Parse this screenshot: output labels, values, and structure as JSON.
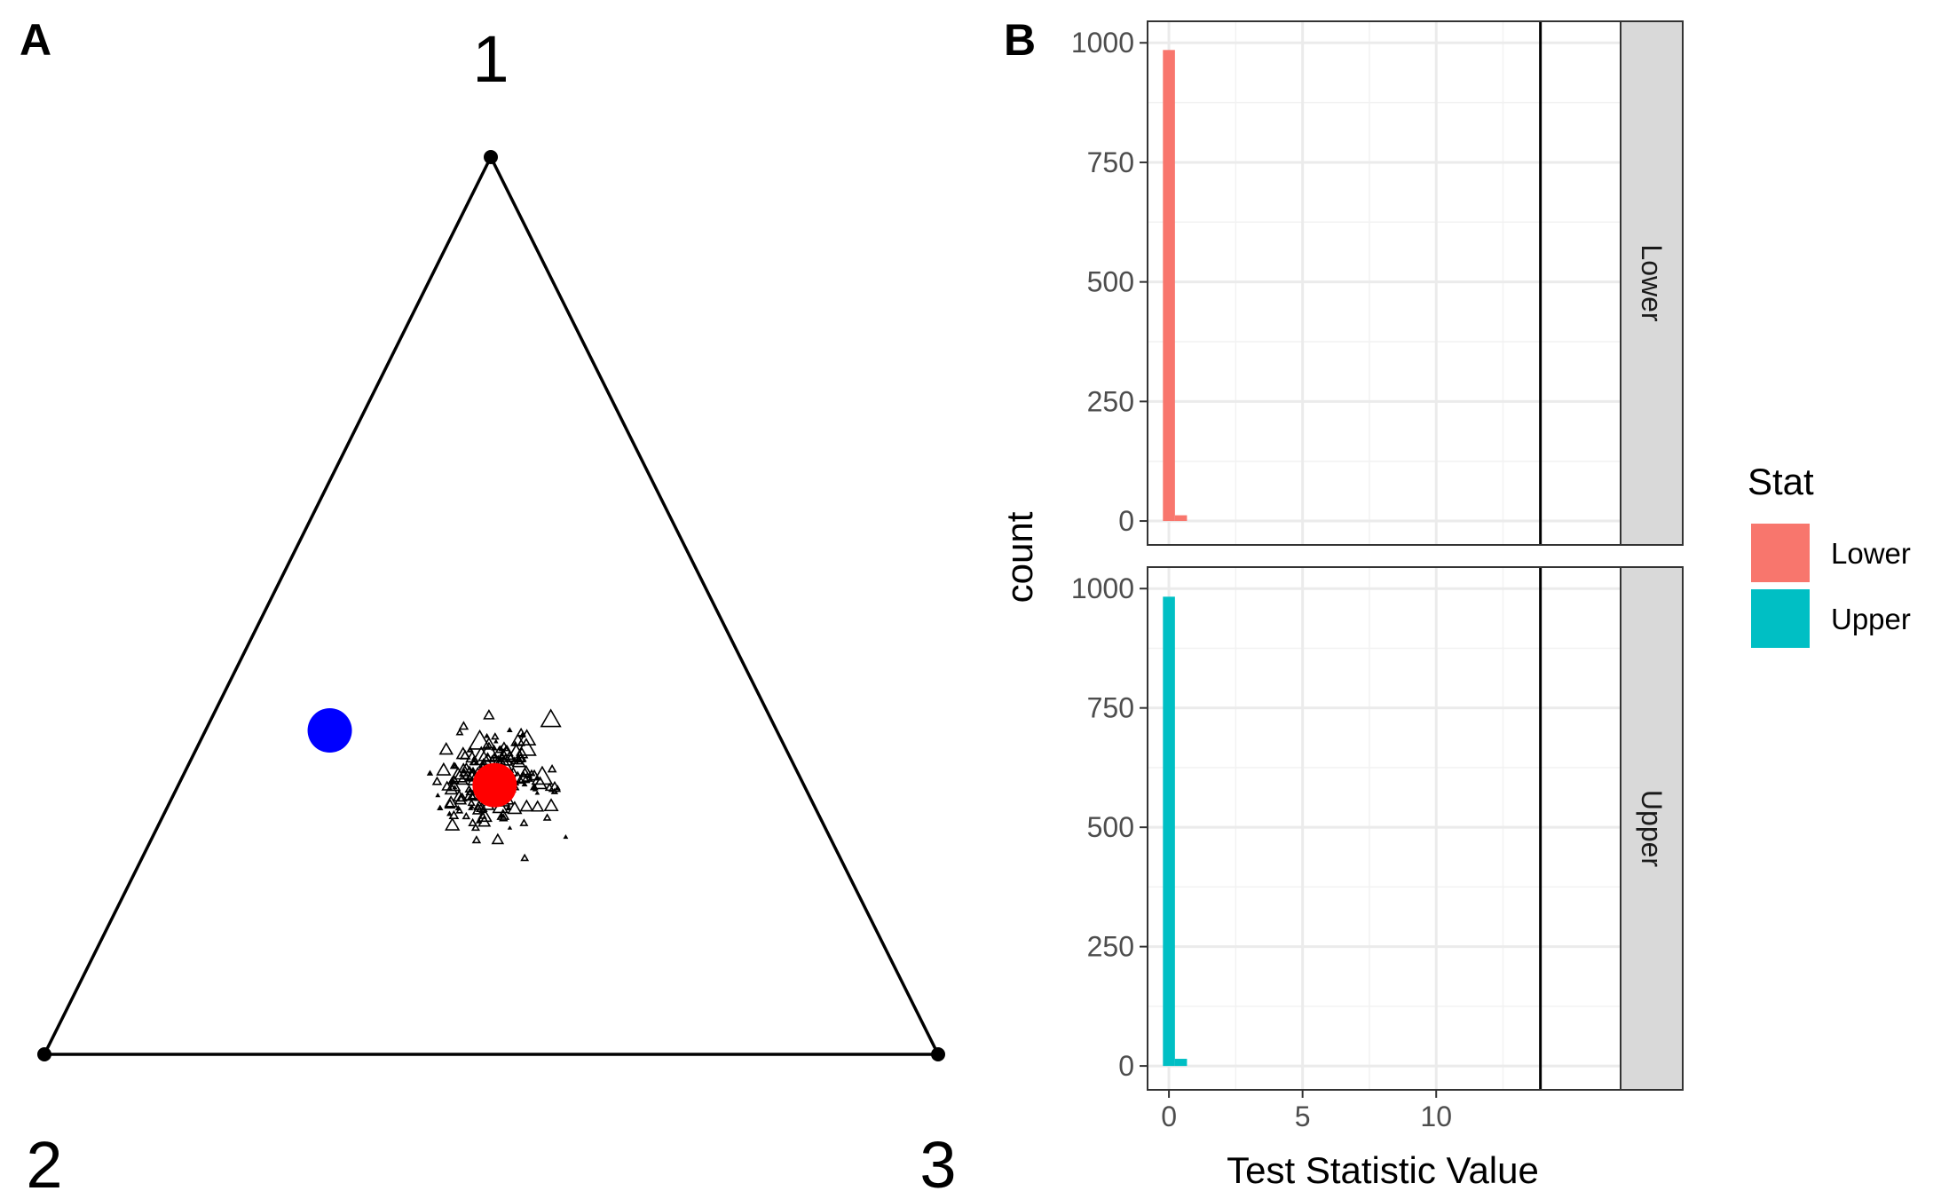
{
  "panel_a": {
    "label": "A",
    "vertex_labels": [
      "1",
      "2",
      "3"
    ],
    "vertex_ids": [
      "vertex-1",
      "vertex-2",
      "vertex-3"
    ],
    "blue_point": {
      "a": 0.361,
      "b": 0.5,
      "c": 0.139,
      "color": "#0000FF"
    },
    "red_point": {
      "a": 0.3,
      "b": 0.346,
      "c": 0.354,
      "color": "#FF0000"
    },
    "scatter_center": {
      "a": 0.3,
      "b": 0.346,
      "c": 0.354
    },
    "scatter_count": 180,
    "marker_shape": "open-triangle"
  },
  "chart_data": {
    "type": "bar",
    "panel_label": "B",
    "xlabel": "Test Statistic Value",
    "ylabel": "count",
    "xlim": [
      -0.8,
      16.9
    ],
    "ylim": [
      -50,
      1045
    ],
    "x_ticks": [
      0,
      5,
      10
    ],
    "x_tick_labels": [
      "0",
      "5",
      "10"
    ],
    "y_ticks": [
      0,
      250,
      500,
      750,
      1000
    ],
    "y_tick_labels": [
      "0",
      "250",
      "500",
      "750",
      "1000"
    ],
    "bin_width": 0.45,
    "observed_value_line": 13.9,
    "facets": [
      {
        "name": "Lower",
        "color": "#F8766D",
        "bins": [
          {
            "x": 0.0,
            "count": 985
          },
          {
            "x": 0.45,
            "count": 12
          }
        ]
      },
      {
        "name": "Upper",
        "color": "#00BFC4",
        "bins": [
          {
            "x": 0.0,
            "count": 983
          },
          {
            "x": 0.45,
            "count": 15
          }
        ]
      }
    ],
    "legend": {
      "title": "Stat",
      "position": "right",
      "entries": [
        {
          "label": "Lower",
          "color": "#F8766D"
        },
        {
          "label": "Upper",
          "color": "#00BFC4"
        }
      ]
    }
  }
}
